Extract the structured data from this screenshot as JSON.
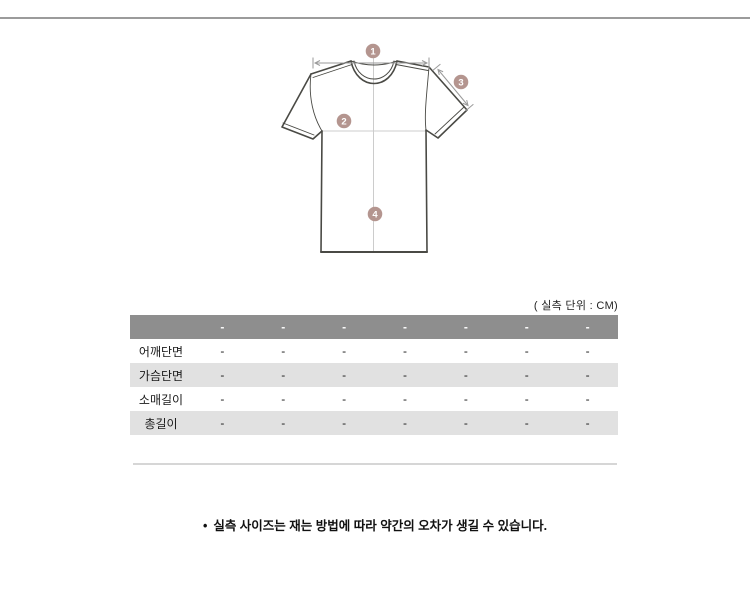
{
  "notes": {
    "unit_note": "( 실측 단위 : CM)",
    "bullet": "•",
    "disclaimer": "실측 사이즈는 재는 방법에 따라 약간의 오차가 생길 수 있습니다."
  },
  "diagram": {
    "type": "tshirt-measurement-illustration",
    "marker_color": "#b4958f",
    "outline_color": "#4a4a45",
    "guide_color": "#cccccc",
    "arrow_color": "#9a9a9a",
    "points": [
      {
        "num": "1"
      },
      {
        "num": "2"
      },
      {
        "num": "3"
      },
      {
        "num": "4"
      }
    ]
  },
  "size_table": {
    "header_bg": "#8e8e8e",
    "alt_row_bg": "#e1e1e1",
    "corner_label": "",
    "header_values": [
      "-",
      "-",
      "-",
      "-",
      "-",
      "-",
      "-"
    ],
    "rows": [
      {
        "label": "어깨단면",
        "values": [
          "-",
          "-",
          "-",
          "-",
          "-",
          "-",
          "-"
        ]
      },
      {
        "label": "가슴단면",
        "values": [
          "-",
          "-",
          "-",
          "-",
          "-",
          "-",
          "-"
        ]
      },
      {
        "label": "소매길이",
        "values": [
          "-",
          "-",
          "-",
          "-",
          "-",
          "-",
          "-"
        ]
      },
      {
        "label": "총길이",
        "values": [
          "-",
          "-",
          "-",
          "-",
          "-",
          "-",
          "-"
        ]
      }
    ]
  }
}
